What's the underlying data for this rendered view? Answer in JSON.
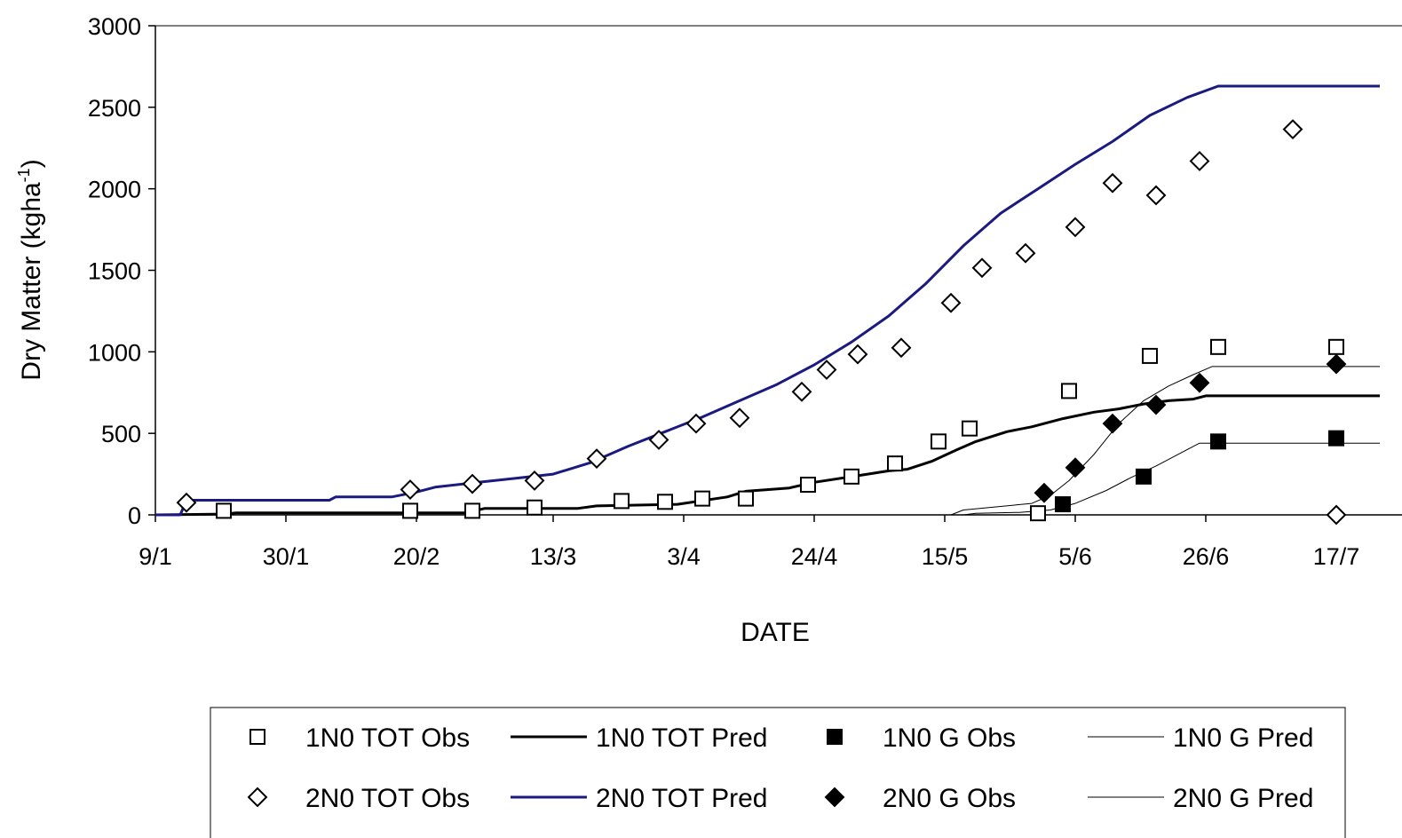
{
  "chart_data": {
    "type": "scatter",
    "xlabel": "DATE",
    "ylabel": "Dry Matter (kgha",
    "ylabel_superscript": "-1",
    "ylabel_close": ")",
    "ylim": [
      0,
      3000
    ],
    "yticks": [
      0,
      500,
      1000,
      1500,
      2000,
      2500,
      3000
    ],
    "xlim": [
      "9/1",
      "24/7"
    ],
    "x_tick_labels": [
      "9/1",
      "30/1",
      "20/2",
      "13/3",
      "3/4",
      "24/4",
      "15/5",
      "5/6",
      "26/6",
      "17/7"
    ],
    "x_ticks": [
      "2000-01-09",
      "2000-01-30",
      "2000-02-20",
      "2000-03-13",
      "2000-04-03",
      "2000-04-24",
      "2000-05-15",
      "2000-06-05",
      "2000-06-26",
      "2000-07-17"
    ],
    "legend_position": "bottom",
    "grid": false,
    "series": [
      {
        "name": "1N0 TOT Obs",
        "kind": "points",
        "marker": "square-open",
        "color": "#000000",
        "points": [
          [
            "2000-01-20",
            25
          ],
          [
            "2000-02-19",
            25
          ],
          [
            "2000-02-29",
            25
          ],
          [
            "2000-03-10",
            45
          ],
          [
            "2000-03-24",
            85
          ],
          [
            "2000-03-31",
            80
          ],
          [
            "2000-04-06",
            100
          ],
          [
            "2000-04-13",
            100
          ],
          [
            "2000-04-23",
            185
          ],
          [
            "2000-04-30",
            235
          ],
          [
            "2000-05-07",
            315
          ],
          [
            "2000-05-14",
            450
          ],
          [
            "2000-05-19",
            530
          ],
          [
            "2000-05-30",
            10
          ],
          [
            "2000-06-04",
            760
          ],
          [
            "2000-06-17",
            975
          ],
          [
            "2000-06-28",
            1030
          ],
          [
            "2000-07-17",
            1030
          ]
        ]
      },
      {
        "name": "1N0 TOT Pred",
        "kind": "line",
        "color": "#000000",
        "stroke": 3,
        "points": [
          [
            "2000-01-09",
            0
          ],
          [
            "2000-01-20",
            5
          ],
          [
            "2000-01-22",
            12
          ],
          [
            "2000-02-28",
            12
          ],
          [
            "2000-03-02",
            40
          ],
          [
            "2000-03-17",
            40
          ],
          [
            "2000-03-20",
            55
          ],
          [
            "2000-04-02",
            65
          ],
          [
            "2000-04-10",
            110
          ],
          [
            "2000-04-13",
            145
          ],
          [
            "2000-04-20",
            165
          ],
          [
            "2000-04-24",
            200
          ],
          [
            "2000-05-01",
            240
          ],
          [
            "2000-05-06",
            270
          ],
          [
            "2000-05-09",
            280
          ],
          [
            "2000-05-13",
            330
          ],
          [
            "2000-05-17",
            400
          ],
          [
            "2000-05-20",
            450
          ],
          [
            "2000-05-25",
            510
          ],
          [
            "2000-05-29",
            540
          ],
          [
            "2000-06-03",
            590
          ],
          [
            "2000-06-08",
            630
          ],
          [
            "2000-06-12",
            650
          ],
          [
            "2000-06-16",
            680
          ],
          [
            "2000-06-20",
            700
          ],
          [
            "2000-06-24",
            710
          ],
          [
            "2000-06-26",
            730
          ],
          [
            "2000-07-24",
            730
          ]
        ]
      },
      {
        "name": "1N0 G Obs",
        "kind": "points",
        "marker": "square-filled",
        "color": "#000000",
        "points": [
          [
            "2000-06-03",
            65
          ],
          [
            "2000-06-16",
            235
          ],
          [
            "2000-06-28",
            450
          ],
          [
            "2000-07-17",
            470
          ]
        ]
      },
      {
        "name": "1N0 G Pred",
        "kind": "line",
        "color": "#000000",
        "stroke": 1,
        "points": [
          [
            "2000-05-18",
            0
          ],
          [
            "2000-05-20",
            10
          ],
          [
            "2000-05-27",
            15
          ],
          [
            "2000-06-01",
            30
          ],
          [
            "2000-06-05",
            70
          ],
          [
            "2000-06-10",
            150
          ],
          [
            "2000-06-14",
            230
          ],
          [
            "2000-06-18",
            300
          ],
          [
            "2000-06-22",
            380
          ],
          [
            "2000-06-25",
            440
          ],
          [
            "2000-07-24",
            440
          ]
        ]
      },
      {
        "name": "2N0 TOT Obs",
        "kind": "points",
        "marker": "diamond-open",
        "color": "#000000",
        "points": [
          [
            "2000-01-14",
            75
          ],
          [
            "2000-02-19",
            155
          ],
          [
            "2000-02-29",
            190
          ],
          [
            "2000-03-10",
            210
          ],
          [
            "2000-03-20",
            345
          ],
          [
            "2000-03-30",
            460
          ],
          [
            "2000-04-05",
            560
          ],
          [
            "2000-04-12",
            595
          ],
          [
            "2000-04-22",
            755
          ],
          [
            "2000-04-26",
            890
          ],
          [
            "2000-05-01",
            985
          ],
          [
            "2000-05-08",
            1025
          ],
          [
            "2000-05-16",
            1300
          ],
          [
            "2000-05-21",
            1515
          ],
          [
            "2000-05-28",
            1605
          ],
          [
            "2000-06-05",
            1765
          ],
          [
            "2000-06-11",
            2035
          ],
          [
            "2000-06-18",
            1960
          ],
          [
            "2000-06-25",
            2170
          ],
          [
            "2000-07-10",
            2365
          ],
          [
            "2000-07-17",
            0
          ]
        ]
      },
      {
        "name": "2N0 TOT Pred",
        "kind": "line",
        "color": "#1a1a80",
        "stroke": 3,
        "points": [
          [
            "2000-01-09",
            0
          ],
          [
            "2000-01-13",
            0
          ],
          [
            "2000-01-14",
            90
          ],
          [
            "2000-02-06",
            90
          ],
          [
            "2000-02-07",
            110
          ],
          [
            "2000-02-16",
            110
          ],
          [
            "2000-02-20",
            140
          ],
          [
            "2000-02-23",
            170
          ],
          [
            "2000-03-01",
            200
          ],
          [
            "2000-03-07",
            225
          ],
          [
            "2000-03-13",
            250
          ],
          [
            "2000-03-19",
            320
          ],
          [
            "2000-03-25",
            420
          ],
          [
            "2000-03-31",
            510
          ],
          [
            "2000-04-06",
            600
          ],
          [
            "2000-04-12",
            700
          ],
          [
            "2000-04-18",
            800
          ],
          [
            "2000-04-24",
            920
          ],
          [
            "2000-04-30",
            1060
          ],
          [
            "2000-05-06",
            1220
          ],
          [
            "2000-05-12",
            1420
          ],
          [
            "2000-05-18",
            1650
          ],
          [
            "2000-05-24",
            1850
          ],
          [
            "2000-05-30",
            2000
          ],
          [
            "2000-06-05",
            2150
          ],
          [
            "2000-06-11",
            2290
          ],
          [
            "2000-06-17",
            2450
          ],
          [
            "2000-06-23",
            2560
          ],
          [
            "2000-06-28",
            2630
          ],
          [
            "2000-07-24",
            2630
          ]
        ]
      },
      {
        "name": "2N0 G Obs",
        "kind": "points",
        "marker": "diamond-filled",
        "color": "#000000",
        "points": [
          [
            "2000-05-31",
            135
          ],
          [
            "2000-06-05",
            290
          ],
          [
            "2000-06-11",
            560
          ],
          [
            "2000-06-18",
            675
          ],
          [
            "2000-06-25",
            810
          ],
          [
            "2000-07-17",
            925
          ]
        ]
      },
      {
        "name": "2N0 G Pred",
        "kind": "line",
        "color": "#000000",
        "stroke": 1,
        "points": [
          [
            "2000-05-16",
            0
          ],
          [
            "2000-05-18",
            30
          ],
          [
            "2000-05-29",
            70
          ],
          [
            "2000-06-01",
            120
          ],
          [
            "2000-06-04",
            210
          ],
          [
            "2000-06-08",
            370
          ],
          [
            "2000-06-12",
            560
          ],
          [
            "2000-06-16",
            700
          ],
          [
            "2000-06-20",
            790
          ],
          [
            "2000-06-24",
            860
          ],
          [
            "2000-06-27",
            910
          ],
          [
            "2000-07-24",
            910
          ]
        ]
      }
    ]
  }
}
